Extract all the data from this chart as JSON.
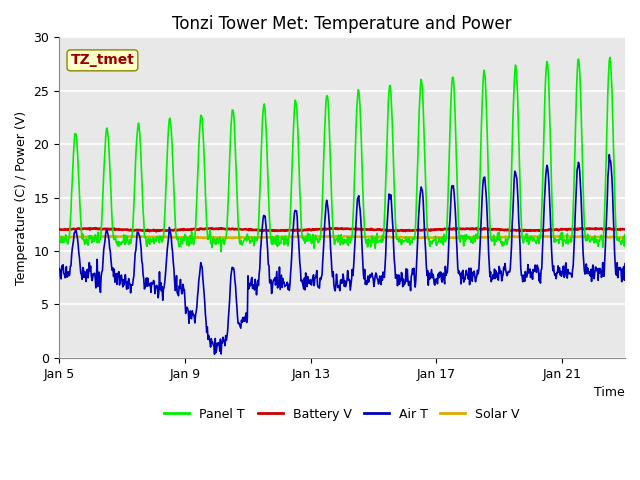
{
  "title": "Tonzi Tower Met: Temperature and Power",
  "xlabel": "Time",
  "ylabel": "Temperature (C) / Power (V)",
  "ylim": [
    0,
    30
  ],
  "yticks": [
    0,
    5,
    10,
    15,
    20,
    25,
    30
  ],
  "xtick_labels": [
    "Jan 5",
    "Jan 9",
    "Jan 13",
    "Jan 17",
    "Jan 21"
  ],
  "xtick_day_offsets": [
    0,
    4,
    8,
    12,
    16
  ],
  "plot_bg_color": "#e8e8e8",
  "grid_color": "#ffffff",
  "annotation_text": "TZ_tmet",
  "annotation_bg": "#ffffcc",
  "annotation_text_color": "#990000",
  "legend_entries": [
    "Panel T",
    "Battery V",
    "Air T",
    "Solar V"
  ],
  "line_colors": {
    "panel_t": "#00ee00",
    "battery_v": "#cc0000",
    "air_t": "#0000bb",
    "solar_v": "#ddaa00"
  },
  "title_fontsize": 12,
  "axis_label_fontsize": 9,
  "tick_fontsize": 9,
  "legend_fontsize": 9
}
